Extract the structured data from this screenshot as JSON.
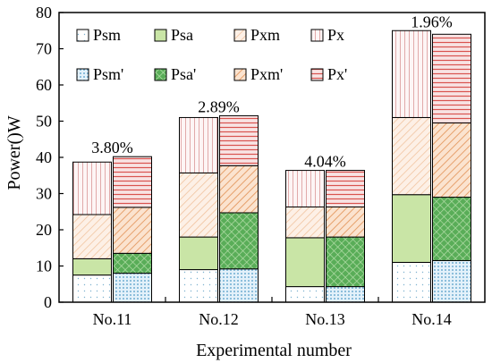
{
  "chart_data": {
    "type": "bar",
    "stacked": true,
    "grouped": true,
    "title": "",
    "xlabel": "Experimental number",
    "ylabel": "Power()W",
    "ylim": [
      0,
      80
    ],
    "yticks": [
      "0",
      "10",
      "20",
      "30",
      "40",
      "50",
      "60",
      "70",
      "80"
    ],
    "categories": [
      "No.11",
      "No.12",
      "No.13",
      "No.14"
    ],
    "groups": [
      {
        "legend": [
          "Psm",
          "Psa",
          "Pxm",
          "Px"
        ],
        "series": [
          {
            "name": "Psm",
            "values": [
              7.5,
              9,
              4.3,
              11
            ]
          },
          {
            "name": "Psa",
            "values": [
              4.5,
              9,
              13.5,
              18.7
            ]
          },
          {
            "name": "Pxm",
            "values": [
              12.2,
              17.7,
              8.5,
              21.3
            ]
          },
          {
            "name": "Px",
            "values": [
              14.5,
              15.3,
              10.1,
              24
            ]
          }
        ]
      },
      {
        "legend": [
          "Psm'",
          "Psa'",
          "Pxm'",
          "Px'"
        ],
        "series": [
          {
            "name": "Psm'",
            "values": [
              8,
              9.2,
              4.3,
              11.5
            ]
          },
          {
            "name": "Psa'",
            "values": [
              5.5,
              15.5,
              13.7,
              17.5
            ]
          },
          {
            "name": "Pxm'",
            "values": [
              12.7,
              13,
              8.3,
              20.5
            ]
          },
          {
            "name": "Px'",
            "values": [
              14,
              13.8,
              10.1,
              24.5
            ]
          }
        ]
      }
    ],
    "annotations": [
      {
        "category": "No.11",
        "text": "3.80%"
      },
      {
        "category": "No.12",
        "text": "2.89%"
      },
      {
        "category": "No.13",
        "text": "4.04%"
      },
      {
        "category": "No.14",
        "text": "1.96%"
      }
    ],
    "colors": {
      "Psm": "#e8f4fa",
      "Psa": "#c9e5a6",
      "Pxm": "#fbe3cf",
      "Px": "#f8e1e3",
      "Psm'": "#e8f4fa",
      "Psa'": "#59ad58",
      "Pxm'": "#fbe3cf",
      "Px'": "#f8e1e3"
    },
    "grid": false,
    "legend_position": "top-left"
  }
}
